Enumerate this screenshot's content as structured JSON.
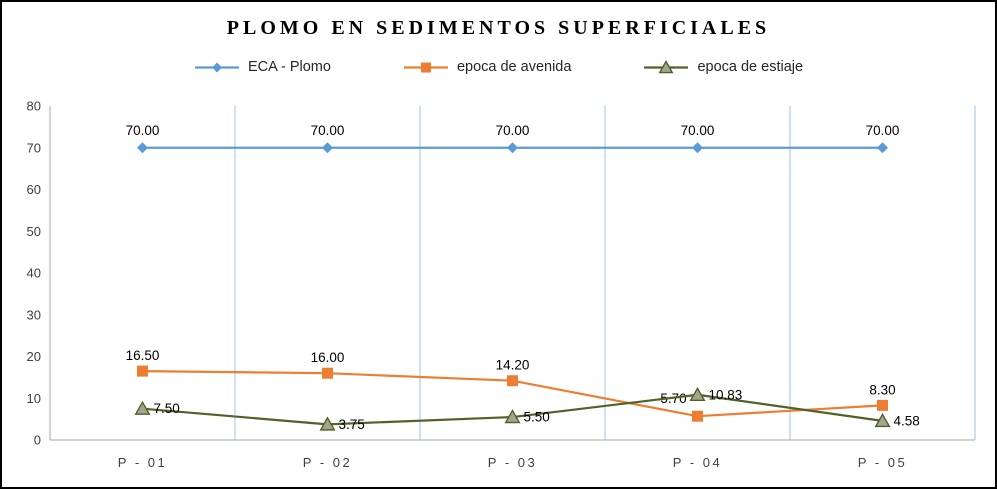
{
  "chart_data": {
    "type": "line",
    "title": "PLOMO EN SEDIMENTOS SUPERFICIALES",
    "categories": [
      "P - 01",
      "P - 02",
      "P - 03",
      "P - 04",
      "P - 05"
    ],
    "xlabel": "",
    "ylabel": "",
    "ylim": [
      0,
      80
    ],
    "yticks": [
      0,
      10,
      20,
      30,
      40,
      50,
      60,
      70,
      80
    ],
    "grid": "vertical",
    "grid_color": "#9DC3E6",
    "axis_color": "#A6A6A6",
    "legend_position": "top",
    "series": [
      {
        "name": "ECA - Plomo",
        "marker": "diamond",
        "color": "#5B9BD5",
        "values": [
          70,
          70,
          70,
          70,
          70
        ],
        "labels": [
          "70.00",
          "70.00",
          "70.00",
          "70.00",
          "70.00"
        ],
        "label_position": "above"
      },
      {
        "name": "epoca de avenida",
        "marker": "square",
        "color": "#ED7D31",
        "values": [
          16.5,
          16.0,
          14.2,
          5.7,
          8.3
        ],
        "labels": [
          "16.50",
          "16.00",
          "14.20",
          "5.70",
          "8.30"
        ],
        "label_position": "above"
      },
      {
        "name": "epoca de estiaje",
        "marker": "triangle",
        "color": "#4F6228",
        "marker_fill": "#A5A58F",
        "values": [
          7.5,
          3.75,
          5.5,
          10.83,
          4.58
        ],
        "labels": [
          "7.50",
          "3.75",
          "5.50",
          "10.83",
          "4.58"
        ],
        "label_position": "right"
      }
    ]
  }
}
